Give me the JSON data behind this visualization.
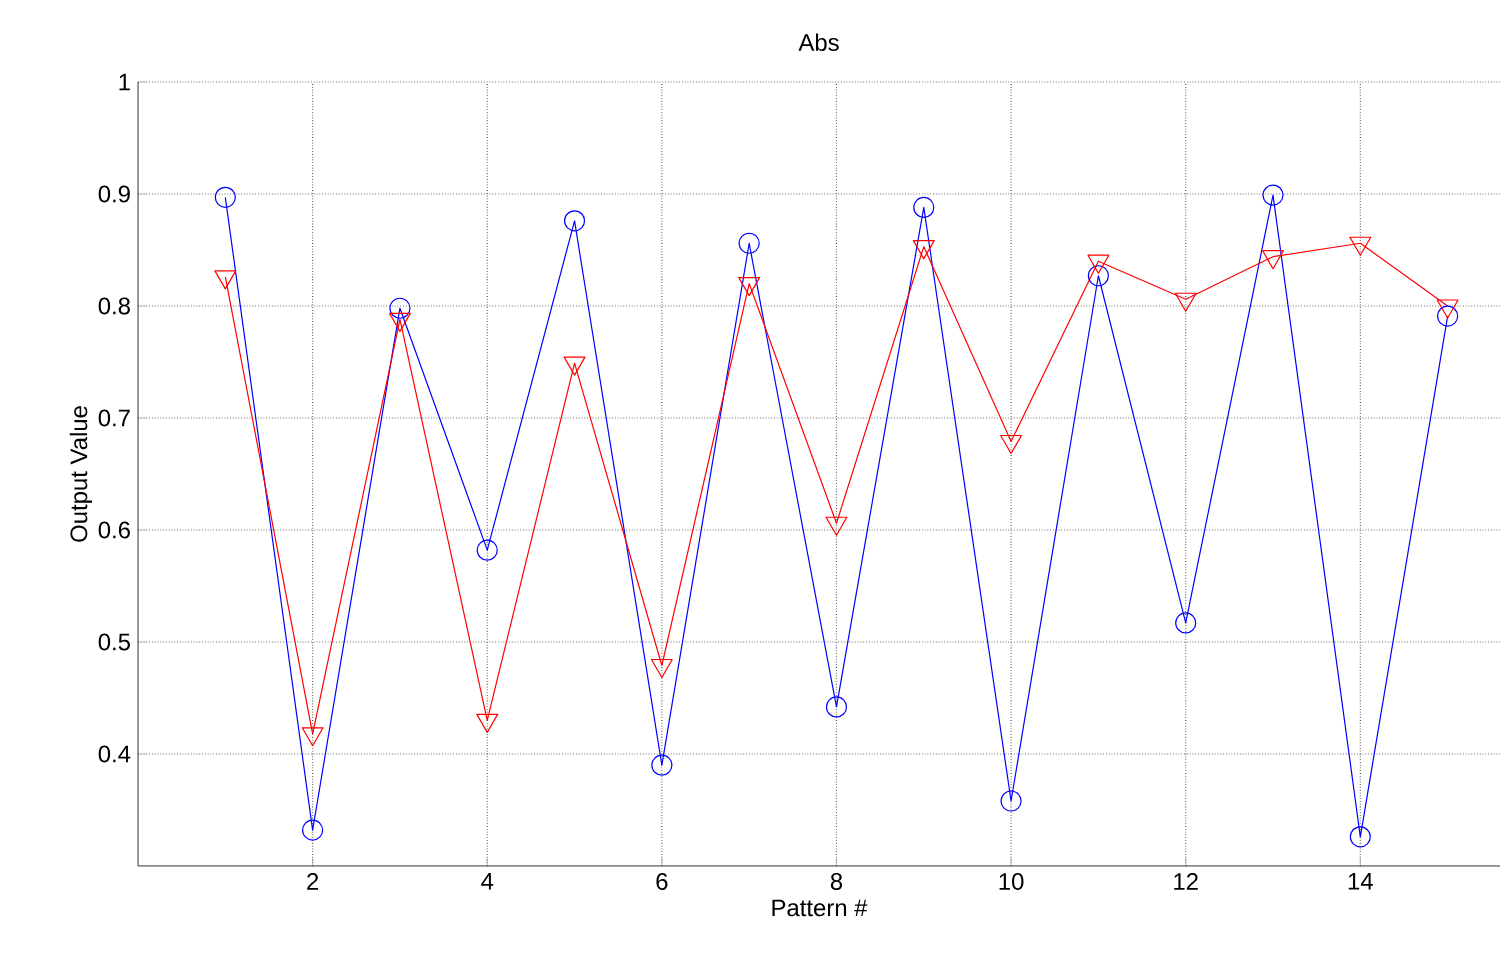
{
  "chart_data": {
    "type": "line",
    "title": "Abs",
    "xlabel": "Pattern #",
    "ylabel": "Output Value",
    "x": [
      1,
      2,
      3,
      4,
      5,
      6,
      7,
      8,
      9,
      10,
      11,
      12,
      13,
      14,
      15
    ],
    "series": [
      {
        "color": "#0000ff",
        "marker": "circle",
        "values": [
          0.897,
          0.332,
          0.798,
          0.582,
          0.876,
          0.39,
          0.856,
          0.442,
          0.888,
          0.358,
          0.827,
          0.517,
          0.899,
          0.326,
          0.791
        ]
      },
      {
        "color": "#ff0000",
        "marker": "triangle",
        "values": [
          0.826,
          0.418,
          0.788,
          0.43,
          0.749,
          0.479,
          0.82,
          0.606,
          0.853,
          0.679,
          0.84,
          0.806,
          0.844,
          0.856,
          0.8
        ]
      }
    ],
    "xlim": [
      0,
      15.6
    ],
    "ylim": [
      0.3,
      1
    ],
    "xticks": [
      2,
      4,
      6,
      8,
      10,
      12,
      14
    ],
    "yticks": [
      0.4,
      0.5,
      0.6,
      0.7,
      0.8,
      0.9,
      1
    ],
    "grid": true,
    "line_style": "solid"
  }
}
